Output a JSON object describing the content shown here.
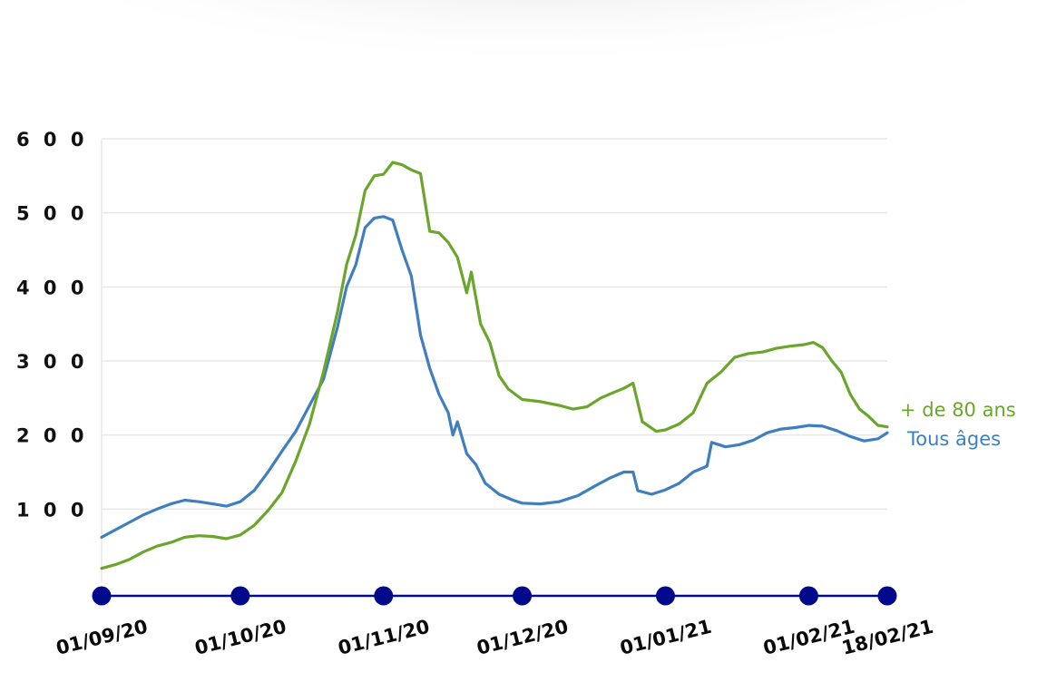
{
  "chart_data": {
    "type": "line",
    "title": "",
    "xlabel": "",
    "ylabel": "",
    "ylim": [
      0,
      600
    ],
    "yticks": [
      100,
      200,
      300,
      400,
      500,
      600
    ],
    "ytick_labels": [
      "1 0 0",
      "2 0 0",
      "3 0 0",
      "4 0 0",
      "5 0 0",
      "6 0 0"
    ],
    "xlim": [
      "01/09/20",
      "18/02/21"
    ],
    "xticks": [
      "01/09/20",
      "01/10/20",
      "01/11/20",
      "01/12/20",
      "01/01/21",
      "01/02/21",
      "18/02/21"
    ],
    "grid": true,
    "legend": "right, at line ends",
    "colors": {
      "green": "#6aa62b",
      "blue": "#3f7fbf",
      "axis": "#000a8a",
      "grid": "#e8e8e8"
    },
    "series": [
      {
        "name": "+ de 80 ans",
        "color": "#6aa62b",
        "points": [
          [
            "01/09/20",
            20
          ],
          [
            "04/09/20",
            25
          ],
          [
            "07/09/20",
            32
          ],
          [
            "10/09/20",
            42
          ],
          [
            "13/09/20",
            50
          ],
          [
            "16/09/20",
            55
          ],
          [
            "19/09/20",
            62
          ],
          [
            "22/09/20",
            64
          ],
          [
            "25/09/20",
            63
          ],
          [
            "28/09/20",
            60
          ],
          [
            "01/10/20",
            65
          ],
          [
            "04/10/20",
            78
          ],
          [
            "07/10/20",
            98
          ],
          [
            "10/10/20",
            122
          ],
          [
            "13/10/20",
            165
          ],
          [
            "16/10/20",
            215
          ],
          [
            "19/10/20",
            285
          ],
          [
            "22/10/20",
            365
          ],
          [
            "24/10/20",
            430
          ],
          [
            "26/10/20",
            470
          ],
          [
            "28/10/20",
            530
          ],
          [
            "30/10/20",
            550
          ],
          [
            "01/11/20",
            552
          ],
          [
            "03/11/20",
            568
          ],
          [
            "05/11/20",
            565
          ],
          [
            "07/11/20",
            558
          ],
          [
            "09/11/20",
            553
          ],
          [
            "11/11/20",
            475
          ],
          [
            "13/11/20",
            473
          ],
          [
            "15/11/20",
            460
          ],
          [
            "17/11/20",
            440
          ],
          [
            "19/11/20",
            392
          ],
          [
            "20/11/20",
            420
          ],
          [
            "22/11/20",
            350
          ],
          [
            "24/11/20",
            325
          ],
          [
            "26/11/20",
            280
          ],
          [
            "28/11/20",
            262
          ],
          [
            "01/12/20",
            248
          ],
          [
            "05/12/20",
            245
          ],
          [
            "09/12/20",
            240
          ],
          [
            "12/12/20",
            235
          ],
          [
            "15/12/20",
            238
          ],
          [
            "18/12/20",
            250
          ],
          [
            "21/12/20",
            258
          ],
          [
            "23/12/20",
            263
          ],
          [
            "25/12/20",
            270
          ],
          [
            "27/12/20",
            218
          ],
          [
            "30/12/20",
            205
          ],
          [
            "01/01/21",
            207
          ],
          [
            "04/01/21",
            215
          ],
          [
            "07/01/21",
            230
          ],
          [
            "10/01/21",
            270
          ],
          [
            "13/01/21",
            285
          ],
          [
            "16/01/21",
            305
          ],
          [
            "19/01/21",
            310
          ],
          [
            "22/01/21",
            312
          ],
          [
            "25/01/21",
            317
          ],
          [
            "28/01/21",
            320
          ],
          [
            "31/01/21",
            322
          ],
          [
            "02/02/21",
            325
          ],
          [
            "04/02/21",
            318
          ],
          [
            "06/02/21",
            300
          ],
          [
            "08/02/21",
            285
          ],
          [
            "10/02/21",
            255
          ],
          [
            "12/02/21",
            235
          ],
          [
            "14/02/21",
            225
          ],
          [
            "16/02/21",
            213
          ],
          [
            "18/02/21",
            211
          ]
        ]
      },
      {
        "name": "Tous âges",
        "color": "#3f7fbf",
        "points": [
          [
            "01/09/20",
            62
          ],
          [
            "04/09/20",
            72
          ],
          [
            "07/09/20",
            82
          ],
          [
            "10/09/20",
            92
          ],
          [
            "13/09/20",
            100
          ],
          [
            "16/09/20",
            107
          ],
          [
            "19/09/20",
            112
          ],
          [
            "22/09/20",
            110
          ],
          [
            "25/09/20",
            107
          ],
          [
            "28/09/20",
            104
          ],
          [
            "01/10/20",
            110
          ],
          [
            "04/10/20",
            125
          ],
          [
            "07/10/20",
            150
          ],
          [
            "10/10/20",
            178
          ],
          [
            "13/10/20",
            205
          ],
          [
            "16/10/20",
            240
          ],
          [
            "19/10/20",
            275
          ],
          [
            "22/10/20",
            345
          ],
          [
            "24/10/20",
            400
          ],
          [
            "26/10/20",
            430
          ],
          [
            "28/10/20",
            480
          ],
          [
            "30/10/20",
            493
          ],
          [
            "01/11/20",
            495
          ],
          [
            "03/11/20",
            490
          ],
          [
            "05/11/20",
            450
          ],
          [
            "07/11/20",
            415
          ],
          [
            "09/11/20",
            335
          ],
          [
            "11/11/20",
            290
          ],
          [
            "13/11/20",
            255
          ],
          [
            "15/11/20",
            230
          ],
          [
            "16/11/20",
            200
          ],
          [
            "17/11/20",
            218
          ],
          [
            "19/11/20",
            175
          ],
          [
            "21/11/20",
            160
          ],
          [
            "23/11/20",
            135
          ],
          [
            "26/11/20",
            120
          ],
          [
            "29/11/20",
            112
          ],
          [
            "01/12/20",
            108
          ],
          [
            "05/12/20",
            107
          ],
          [
            "09/12/20",
            110
          ],
          [
            "13/12/20",
            118
          ],
          [
            "17/12/20",
            132
          ],
          [
            "20/12/20",
            142
          ],
          [
            "23/12/20",
            150
          ],
          [
            "25/12/20",
            150
          ],
          [
            "26/12/20",
            125
          ],
          [
            "29/12/20",
            120
          ],
          [
            "01/01/21",
            126
          ],
          [
            "04/01/21",
            135
          ],
          [
            "07/01/21",
            150
          ],
          [
            "10/01/21",
            158
          ],
          [
            "11/01/21",
            190
          ],
          [
            "14/01/21",
            184
          ],
          [
            "17/01/21",
            187
          ],
          [
            "20/01/21",
            193
          ],
          [
            "23/01/21",
            203
          ],
          [
            "26/01/21",
            208
          ],
          [
            "29/01/21",
            210
          ],
          [
            "01/02/21",
            213
          ],
          [
            "04/02/21",
            212
          ],
          [
            "07/02/21",
            206
          ],
          [
            "10/02/21",
            198
          ],
          [
            "13/02/21",
            192
          ],
          [
            "16/02/21",
            195
          ],
          [
            "18/02/21",
            203
          ]
        ]
      }
    ]
  }
}
